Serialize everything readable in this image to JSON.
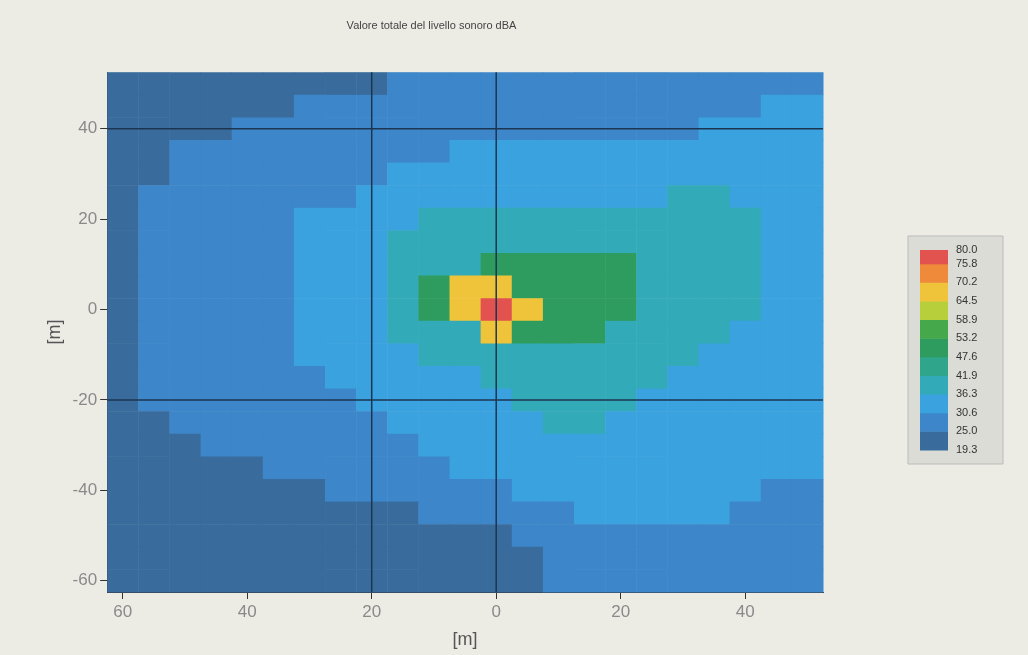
{
  "chart_data": {
    "type": "heatmap",
    "title": "Valore totale del livello sonoro dBA",
    "xlabel": "[m]",
    "ylabel": "[m]",
    "categories": [
      "60",
      null,
      null,
      null,
      "40",
      null,
      null,
      null,
      "20",
      null,
      null,
      null,
      "0",
      null,
      null,
      null,
      "20",
      null,
      null,
      null,
      "40",
      null,
      null
    ],
    "y_categories": [
      null,
      null,
      "40",
      null,
      null,
      null,
      "20",
      null,
      null,
      null,
      "0",
      null,
      null,
      null,
      "-20",
      null,
      null,
      null,
      "-40",
      null,
      null,
      null,
      "-60"
    ],
    "clim": [
      19.3,
      80.0
    ],
    "cticks": [
      19.3,
      {
        "value": 25,
        "label": "25.0"
      },
      30.6,
      36.3,
      41.9,
      47.6,
      53.2,
      58.9,
      64.5,
      70.2,
      75.8,
      {
        "value": 80,
        "label": "80.0"
      }
    ],
    "colors": [
      "#396c9c",
      "#3c86c9",
      "#3aa2de",
      "#33aab8",
      "#2fa58c",
      "#2e9c5e",
      "#45a84a",
      "#b8cf3c",
      "#f0c43a",
      "#ef8a3a",
      "#e2524e"
    ],
    "cells": [
      [
        22,
        22,
        22,
        22,
        22,
        22,
        22,
        22,
        22,
        28,
        28,
        28,
        28,
        28,
        28,
        28,
        28,
        28,
        28,
        28,
        28,
        28,
        28
      ],
      [
        22,
        22,
        22,
        22,
        22,
        22,
        28,
        28,
        28,
        28,
        28,
        28,
        28,
        28,
        28,
        28,
        28,
        28,
        28,
        28,
        28,
        33,
        33
      ],
      [
        22,
        22,
        22,
        22,
        28,
        28,
        28,
        28,
        28,
        28,
        28,
        28,
        28,
        28,
        28,
        28,
        28,
        28,
        28,
        33,
        33,
        33,
        33
      ],
      [
        22,
        22,
        28,
        28,
        28,
        28,
        28,
        28,
        28,
        28,
        28,
        33,
        33,
        33,
        33,
        33,
        33,
        33,
        33,
        33,
        33,
        33,
        33
      ],
      [
        22,
        22,
        28,
        28,
        28,
        28,
        28,
        28,
        28,
        33,
        33,
        33,
        33,
        33,
        33,
        33,
        33,
        33,
        33,
        33,
        33,
        33,
        33
      ],
      [
        22,
        28,
        28,
        28,
        28,
        28,
        28,
        28,
        33,
        33,
        33,
        33,
        33,
        33,
        33,
        33,
        33,
        33,
        39,
        39,
        33,
        33,
        33
      ],
      [
        22,
        28,
        28,
        28,
        28,
        28,
        33,
        33,
        33,
        33,
        39,
        39,
        39,
        39,
        39,
        39,
        39,
        39,
        39,
        39,
        39,
        33,
        33
      ],
      [
        22,
        28,
        28,
        28,
        28,
        28,
        33,
        33,
        33,
        39,
        39,
        39,
        39,
        39,
        39,
        39,
        39,
        39,
        39,
        39,
        39,
        33,
        33
      ],
      [
        22,
        28,
        28,
        28,
        28,
        28,
        33,
        33,
        33,
        39,
        39,
        39,
        50,
        50,
        50,
        50,
        50,
        39,
        39,
        39,
        39,
        33,
        33
      ],
      [
        22,
        28,
        28,
        28,
        28,
        28,
        33,
        33,
        33,
        39,
        50,
        70,
        70,
        50,
        50,
        50,
        50,
        39,
        39,
        39,
        39,
        33,
        33
      ],
      [
        22,
        28,
        28,
        28,
        28,
        28,
        33,
        33,
        33,
        39,
        50,
        70,
        78,
        70,
        50,
        50,
        50,
        39,
        39,
        39,
        39,
        33,
        33
      ],
      [
        22,
        28,
        28,
        28,
        28,
        28,
        33,
        33,
        33,
        39,
        39,
        39,
        70,
        50,
        50,
        50,
        39,
        39,
        39,
        39,
        33,
        33,
        33
      ],
      [
        22,
        28,
        28,
        28,
        28,
        28,
        33,
        33,
        33,
        33,
        39,
        39,
        39,
        39,
        39,
        39,
        39,
        39,
        39,
        33,
        33,
        33,
        33
      ],
      [
        22,
        28,
        28,
        28,
        28,
        28,
        28,
        33,
        33,
        33,
        33,
        33,
        39,
        39,
        39,
        39,
        39,
        39,
        33,
        33,
        33,
        33,
        33
      ],
      [
        22,
        28,
        28,
        28,
        28,
        28,
        28,
        28,
        33,
        33,
        33,
        33,
        33,
        39,
        39,
        39,
        39,
        33,
        33,
        33,
        33,
        33,
        33
      ],
      [
        22,
        22,
        28,
        28,
        28,
        28,
        28,
        28,
        28,
        33,
        33,
        33,
        33,
        33,
        39,
        39,
        33,
        33,
        33,
        33,
        33,
        33,
        33
      ],
      [
        22,
        22,
        22,
        28,
        28,
        28,
        28,
        28,
        28,
        28,
        33,
        33,
        33,
        33,
        33,
        33,
        33,
        33,
        33,
        33,
        33,
        33,
        33
      ],
      [
        22,
        22,
        22,
        22,
        22,
        28,
        28,
        28,
        28,
        28,
        28,
        33,
        33,
        33,
        33,
        33,
        33,
        33,
        33,
        33,
        33,
        33,
        33
      ],
      [
        22,
        22,
        22,
        22,
        22,
        22,
        22,
        28,
        28,
        28,
        28,
        28,
        28,
        33,
        33,
        33,
        33,
        33,
        33,
        33,
        33,
        28,
        28
      ],
      [
        22,
        22,
        22,
        22,
        22,
        22,
        22,
        22,
        22,
        22,
        28,
        28,
        28,
        28,
        28,
        33,
        33,
        33,
        33,
        33,
        28,
        28,
        28
      ],
      [
        22,
        22,
        22,
        22,
        22,
        22,
        22,
        22,
        22,
        22,
        22,
        22,
        22,
        28,
        28,
        28,
        28,
        28,
        28,
        28,
        28,
        28,
        28
      ],
      [
        22,
        22,
        22,
        22,
        22,
        22,
        22,
        22,
        22,
        22,
        22,
        22,
        22,
        22,
        28,
        28,
        28,
        28,
        28,
        28,
        28,
        28,
        28
      ],
      [
        22,
        22,
        22,
        22,
        22,
        22,
        22,
        22,
        22,
        22,
        22,
        22,
        22,
        22,
        28,
        28,
        28,
        28,
        28,
        28,
        28,
        28,
        28
      ]
    ],
    "ref_lines": [
      {
        "axis": "x",
        "value": "20",
        "color": "#1c3550"
      },
      {
        "axis": "x",
        "value": "0",
        "color": "#1c3550"
      },
      {
        "axis": "y",
        "value": "40",
        "color": "#1c3550"
      },
      {
        "axis": "y",
        "value": "-20",
        "color": "#1c3550"
      }
    ]
  }
}
